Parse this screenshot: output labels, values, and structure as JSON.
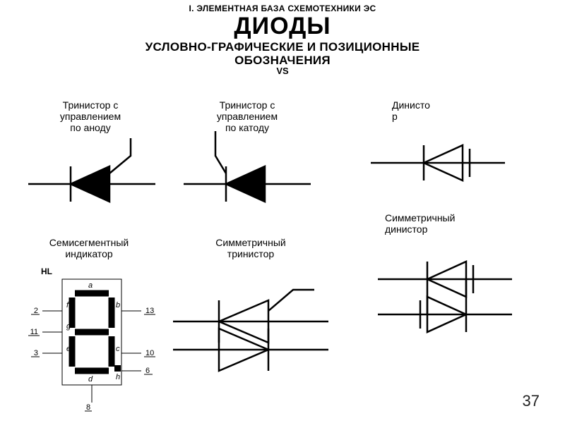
{
  "header": {
    "super": "I. ЭЛЕМЕНТНАЯ БАЗА СХЕМОТЕХНИКИ ЭС",
    "title": "ДИОДЫ",
    "sub1": "УСЛОВНО-ГРАФИЧЕСКИЕ И ПОЗИЦИОННЫЕ",
    "sub2": "ОБОЗНАЧЕНИЯ",
    "vs": "VS"
  },
  "captions": {
    "trin_anode": "Тринистор с\nуправлением\nпо аноду",
    "trin_cathode": "Тринистор с\nуправлением\nпо катоду",
    "dinistor": "Динисто\nр",
    "sym_dinistor": "Симметричный\nдинистор",
    "sevenseg": "Семисегментный\nиндикатор",
    "sym_trin": "Симметричный\nтринистор",
    "hl": "HL"
  },
  "sevenseg": {
    "segments": [
      "a",
      "b",
      "c",
      "d",
      "e",
      "f",
      "g",
      "h"
    ],
    "pins_left": [
      [
        "2",
        "f"
      ],
      [
        "11",
        "g"
      ],
      [
        "3",
        "e"
      ]
    ],
    "pins_right": [
      [
        "13",
        "b"
      ],
      [
        "10",
        "c"
      ],
      [
        "6",
        "h"
      ]
    ],
    "top_label": "a",
    "bottom_pin": "8",
    "bottom_label": "d"
  },
  "pagenum": "37",
  "style": {
    "bg": "#ffffff",
    "stroke": "#000000",
    "line_mid": 2.5,
    "line_thin": 1,
    "font_family": "Arial",
    "title_size": 34,
    "sub_size": 17,
    "caption_size": 14
  }
}
